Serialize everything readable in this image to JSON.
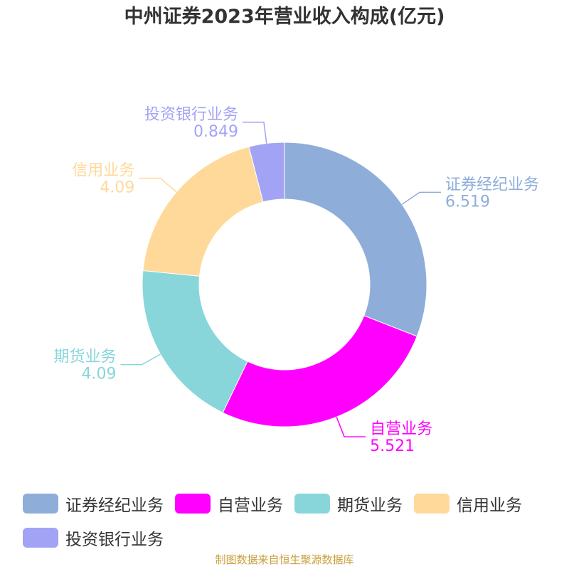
{
  "chart_data": {
    "type": "pie",
    "variant": "donut",
    "title": "中州证券2023年营业收入构成(亿元)",
    "categories": [
      "证券经纪业务",
      "自营业务",
      "期货业务",
      "信用业务",
      "投资银行业务"
    ],
    "values": [
      6.519,
      5.521,
      4.09,
      4.09,
      0.849
    ],
    "value_labels": [
      "6.519",
      "5.521",
      "4.09",
      "4.09",
      "0.849"
    ],
    "colors": [
      "#8eadd9",
      "#ff00ff",
      "#88d6d9",
      "#ffd99a",
      "#a3a3f5"
    ],
    "legend": {
      "placement": "bottom",
      "entries": [
        "证券经纪业务",
        "自营业务",
        "期货业务",
        "信用业务",
        "投资银行业务"
      ]
    }
  },
  "source_text": "制图数据来自恒生聚源数据库"
}
